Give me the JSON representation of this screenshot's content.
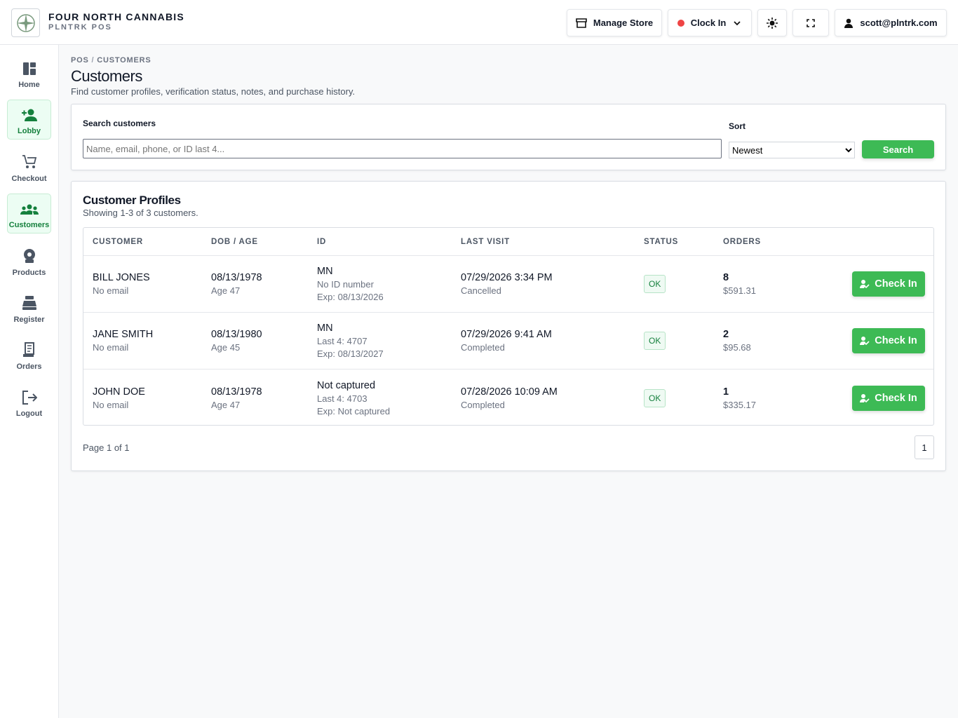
{
  "header": {
    "brand": "FOUR NORTH CANNABIS",
    "subtitle": "PLNTRK POS",
    "manage_store": "Manage Store",
    "clock_in": "Clock In",
    "user": "scott@plntrk.com"
  },
  "sidebar": [
    {
      "label": "Home"
    },
    {
      "label": "Lobby",
      "active": true
    },
    {
      "label": "Checkout"
    },
    {
      "label": "Customers",
      "active": true
    },
    {
      "label": "Products"
    },
    {
      "label": "Register"
    },
    {
      "label": "Orders"
    },
    {
      "label": "Logout"
    }
  ],
  "breadcrumb": {
    "items": [
      "POS",
      "CUSTOMERS"
    ],
    "separator": "/"
  },
  "page": {
    "title": "Customers",
    "description": "Find customer profiles, verification status, notes, and purchase history."
  },
  "search": {
    "label": "Search customers",
    "placeholder": "Name, email, phone, or ID last 4...",
    "sort_label": "Sort",
    "sort_value": "Newest",
    "button": "Search"
  },
  "profiles": {
    "title": "Customer Profiles",
    "summary": "Showing 1-3 of 3 customers.",
    "columns": [
      "CUSTOMER",
      "DOB / AGE",
      "ID",
      "LAST VISIT",
      "STATUS",
      "ORDERS"
    ],
    "rows": [
      {
        "name": "BILL JONES",
        "email": "No email",
        "dob": "08/13/1978",
        "age": "Age 47",
        "id_state": "MN",
        "id_number": "No ID number",
        "id_exp": "Exp: 08/13/2026",
        "last_visit": "07/29/2026 3:34 PM",
        "visit_status": "Cancelled",
        "status": "OK",
        "orders": "8",
        "total": "$591.31",
        "action": "Check In"
      },
      {
        "name": "JANE SMITH",
        "email": "No email",
        "dob": "08/13/1980",
        "age": "Age 45",
        "id_state": "MN",
        "id_number": "Last 4: 4707",
        "id_exp": "Exp: 08/13/2027",
        "last_visit": "07/29/2026 9:41 AM",
        "visit_status": "Completed",
        "status": "OK",
        "orders": "2",
        "total": "$95.68",
        "action": "Check In"
      },
      {
        "name": "JOHN DOE",
        "email": "No email",
        "dob": "08/13/1978",
        "age": "Age 47",
        "id_state": "Not captured",
        "id_number": "Last 4: 4703",
        "id_exp": "Exp: Not captured",
        "last_visit": "07/28/2026 10:09 AM",
        "visit_status": "Completed",
        "status": "OK",
        "orders": "1",
        "total": "$335.17",
        "action": "Check In"
      }
    ],
    "pagination": {
      "label": "Page 1 of 1",
      "pages": [
        "1"
      ]
    }
  }
}
